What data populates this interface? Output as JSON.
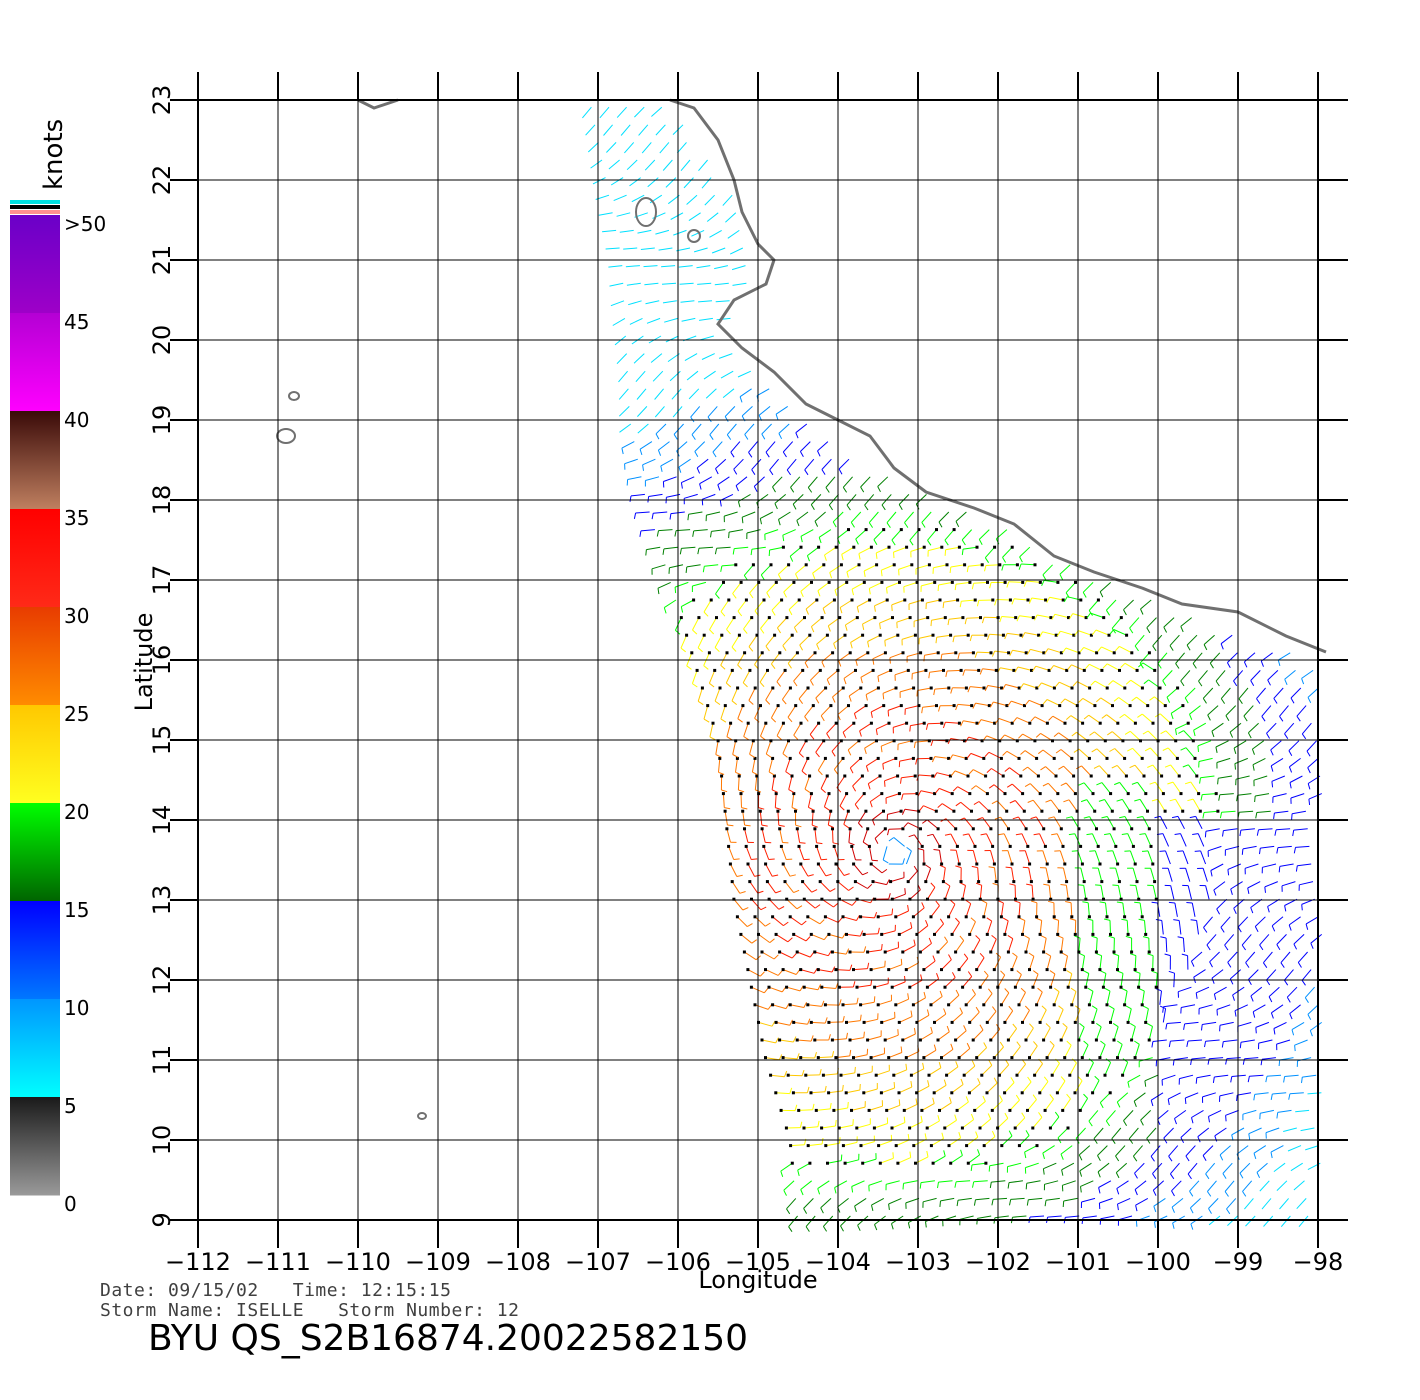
{
  "legend": {
    "unit": "knots",
    "labels": [
      ">50",
      "45",
      "40",
      "35",
      "30",
      "25",
      "20",
      "15",
      "10",
      "5",
      "0"
    ],
    "bands": [
      {
        "range": "45-50+",
        "top": "#6a00c8",
        "bottom": "#9e00c8"
      },
      {
        "range": "40-45",
        "top": "#b400d4",
        "bottom": "#ff00ff"
      },
      {
        "range": "35-40",
        "top": "#3a0a08",
        "bottom": "#c08060"
      },
      {
        "range": "30-35",
        "top": "#ff0000",
        "bottom": "#ff2a18"
      },
      {
        "range": "25-30",
        "top": "#e83c00",
        "bottom": "#ff8c00"
      },
      {
        "range": "20-25",
        "top": "#ffc800",
        "bottom": "#ffff20"
      },
      {
        "range": "15-20",
        "top": "#00ff00",
        "bottom": "#006400"
      },
      {
        "range": "10-15",
        "top": "#0000ff",
        "bottom": "#0078ff"
      },
      {
        "range": "5-10",
        "top": "#0096ff",
        "bottom": "#00ffff"
      },
      {
        "range": "0-5",
        "top": "#1a1a1a",
        "bottom": "#9a9a9a"
      }
    ],
    "flag_colors": [
      "#00e0e0",
      "#000000",
      "#ff9090"
    ]
  },
  "axes": {
    "x_ticks": [
      "-112",
      "-111",
      "-110",
      "-109",
      "-108",
      "-107",
      "-106",
      "-105",
      "-104",
      "-103",
      "-102",
      "-101",
      "-100",
      "-99",
      "-98"
    ],
    "y_ticks": [
      "9",
      "10",
      "11",
      "12",
      "13",
      "14",
      "15",
      "16",
      "17",
      "18",
      "19",
      "20",
      "21",
      "22",
      "23"
    ],
    "x_label": "Longitude",
    "y_label": "Latitude",
    "lon_range": [
      -112,
      -98
    ],
    "lat_range": [
      9,
      23
    ]
  },
  "footer": {
    "date_line": "Date: 09/15/02   Time: 12:15:15",
    "storm_line": "Storm Name: ISELLE   Storm Number: 12",
    "title": "BYU QS_S2B16874.20022582150"
  },
  "colors": {
    "grid": "#000000",
    "coast": "#707070"
  }
}
